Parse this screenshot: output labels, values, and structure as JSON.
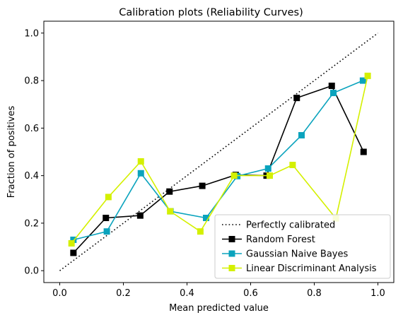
{
  "chart_data": {
    "type": "line",
    "title": "Calibration plots  (Reliability Curves)",
    "xlabel": "Mean predicted value",
    "ylabel": "Fraction of positives",
    "xlim": [
      -0.05,
      1.05
    ],
    "ylim": [
      -0.05,
      1.05
    ],
    "xticks": [
      0.0,
      0.2,
      0.4,
      0.6,
      0.8,
      1.0
    ],
    "xtick_labels": [
      "0.0",
      "0.2",
      "0.4",
      "0.6",
      "0.8",
      "1.0"
    ],
    "yticks": [
      0.0,
      0.2,
      0.4,
      0.6,
      0.8,
      1.0
    ],
    "ytick_labels": [
      "0.0",
      "0.2",
      "0.4",
      "0.6",
      "0.8",
      "1.0"
    ],
    "grid": false,
    "legend_position": "lower-right",
    "series": [
      {
        "name": "Perfectly calibrated",
        "color": "#000000",
        "style": "dotted",
        "marker": "none",
        "x": [
          0.0,
          1.0
        ],
        "y": [
          0.0,
          1.0
        ]
      },
      {
        "name": "Random Forest",
        "color": "#000000",
        "style": "solid",
        "marker": "square",
        "x": [
          0.043,
          0.145,
          0.253,
          0.345,
          0.448,
          0.553,
          0.65,
          0.745,
          0.855,
          0.955
        ],
        "y": [
          0.075,
          0.222,
          0.232,
          0.333,
          0.357,
          0.403,
          0.4,
          0.727,
          0.778,
          0.5
        ]
      },
      {
        "name": "Gaussian Naive Bayes",
        "color": "#0aa3bd",
        "style": "solid",
        "marker": "square",
        "x": [
          0.043,
          0.148,
          0.255,
          0.348,
          0.46,
          0.558,
          0.655,
          0.76,
          0.86,
          0.953
        ],
        "y": [
          0.13,
          0.165,
          0.41,
          0.25,
          0.222,
          0.398,
          0.43,
          0.57,
          0.748,
          0.8
        ]
      },
      {
        "name": "Linear Discriminant Analysis",
        "color": "#d4f000",
        "style": "solid",
        "marker": "square",
        "x": [
          0.037,
          0.153,
          0.255,
          0.347,
          0.442,
          0.548,
          0.66,
          0.732,
          0.868,
          0.968
        ],
        "y": [
          0.115,
          0.31,
          0.46,
          0.25,
          0.165,
          0.4,
          0.4,
          0.445,
          0.22,
          0.82
        ]
      }
    ]
  }
}
